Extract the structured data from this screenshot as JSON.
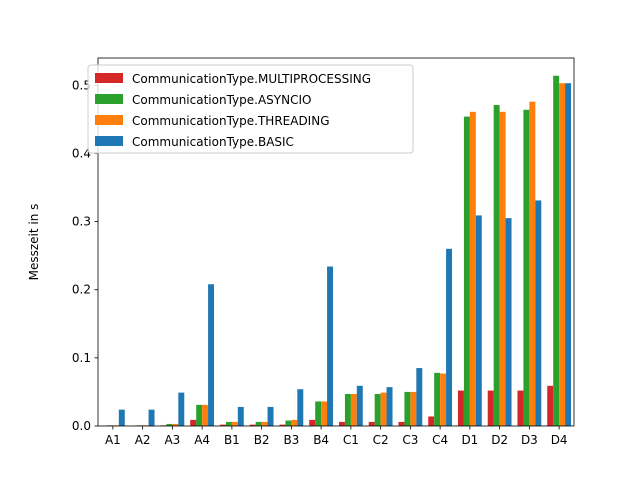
{
  "chart_data": {
    "type": "bar",
    "title": "",
    "xlabel": "",
    "ylabel": "Messzeit in s",
    "ylim": [
      0,
      0.54
    ],
    "yticks": [
      "0.0",
      "0.1",
      "0.2",
      "0.3",
      "0.4",
      "0.5"
    ],
    "ytick_values": [
      0,
      0.1,
      0.2,
      0.3,
      0.4,
      0.5
    ],
    "grid": false,
    "legend_position": "top-left",
    "categories": [
      "A1",
      "A2",
      "A3",
      "A4",
      "B1",
      "B2",
      "B3",
      "B4",
      "C1",
      "C2",
      "C3",
      "C4",
      "D1",
      "D2",
      "D3",
      "D4"
    ],
    "series": [
      {
        "name": "CommunicationType.MULTIPROCESSING",
        "color": "#d62728",
        "values": [
          0.0005,
          0.0005,
          0.001,
          0.009,
          0.002,
          0.002,
          0.002,
          0.009,
          0.006,
          0.006,
          0.006,
          0.014,
          0.052,
          0.052,
          0.052,
          0.059
        ]
      },
      {
        "name": "CommunicationType.ASYNCIO",
        "color": "#2ca02c",
        "values": [
          0.001,
          0.001,
          0.003,
          0.031,
          0.006,
          0.006,
          0.008,
          0.036,
          0.047,
          0.047,
          0.05,
          0.078,
          0.454,
          0.471,
          0.464,
          0.514
        ]
      },
      {
        "name": "CommunicationType.THREADING",
        "color": "#ff7f0e",
        "values": [
          0.001,
          0.001,
          0.003,
          0.031,
          0.006,
          0.006,
          0.009,
          0.036,
          0.047,
          0.049,
          0.05,
          0.077,
          0.461,
          0.461,
          0.476,
          0.503
        ]
      },
      {
        "name": "CommunicationType.BASIC",
        "color": "#1f77b4",
        "values": [
          0.024,
          0.024,
          0.049,
          0.208,
          0.028,
          0.028,
          0.054,
          0.234,
          0.059,
          0.057,
          0.085,
          0.26,
          0.309,
          0.305,
          0.331,
          0.503
        ]
      }
    ]
  }
}
